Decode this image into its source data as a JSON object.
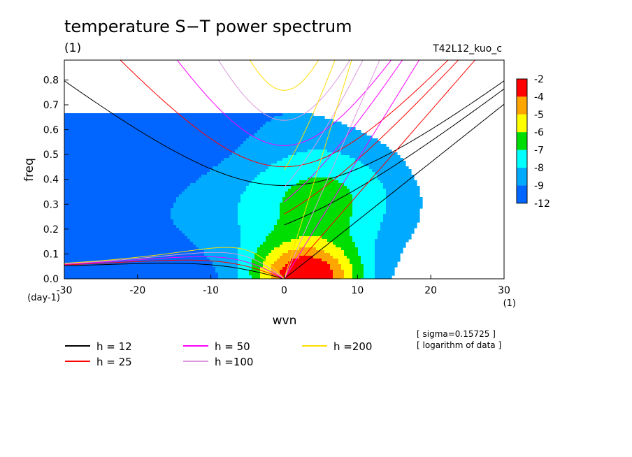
{
  "chart_data": {
    "type": "heatmap",
    "title": "temperature S−T power spectrum",
    "subtitle": "(1)",
    "run_label": "T42L12_kuo_c",
    "xlabel": "wvn",
    "ylabel": "freq",
    "x_unit": "(1)",
    "y_unit": "(day-1)",
    "xlim": [
      -30,
      30
    ],
    "ylim": [
      0,
      0.88
    ],
    "x_ticks": [
      "-30",
      "-20",
      "-10",
      "0",
      "10",
      "20",
      "30"
    ],
    "x_tick_values": [
      -30,
      -20,
      -10,
      0,
      10,
      20,
      30
    ],
    "y_ticks": [
      "0.0",
      "0.1",
      "0.2",
      "0.3",
      "0.4",
      "0.5",
      "0.6",
      "0.7",
      "0.8"
    ],
    "y_tick_values": [
      0,
      0.1,
      0.2,
      0.3,
      0.4,
      0.5,
      0.6,
      0.7,
      0.8
    ],
    "colorbar": {
      "labels": [
        "-2",
        "-4",
        "-5",
        "-6",
        "-7",
        "-8",
        "-9",
        "-12"
      ],
      "colors": [
        "#ff0000",
        "#ffa500",
        "#ffff00",
        "#00dd00",
        "#00ffff",
        "#00aaff",
        "#0066ff"
      ]
    },
    "notes": [
      "[ sigma=0.15725 ]",
      "[ logarithm of data ]"
    ],
    "dispersion_curves": [
      {
        "label": "h = 12",
        "h": 12,
        "color": "#000000"
      },
      {
        "label": "h = 25",
        "h": 25,
        "color": "#ff0000"
      },
      {
        "label": "h = 50",
        "h": 50,
        "color": "#ff00ff"
      },
      {
        "label": "h =100",
        "h": 100,
        "color": "#dd99dd"
      },
      {
        "label": "h =200",
        "h": 200,
        "color": "#ffdd00"
      }
    ],
    "grid": false
  }
}
